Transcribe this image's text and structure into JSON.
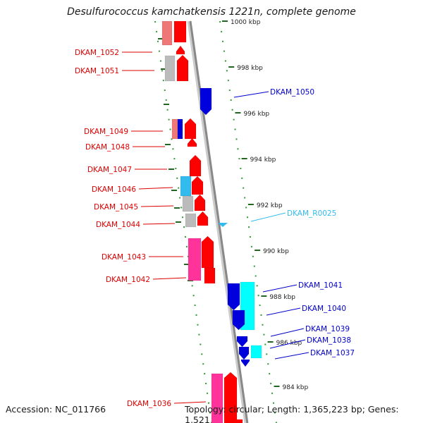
{
  "title": "Desulfurococcus kamchatkensis 1221n, complete genome",
  "footer": {
    "accession": "Accession: NC_011766",
    "topology": "Topology: circular; Length: 1,365,223 bp; Genes: 1,521"
  },
  "colors": {
    "forward_gene": "#ff0000",
    "reverse_gene": "#0000dd",
    "rna_gene": "#00ffff",
    "label_left": "#dd0000",
    "label_right": "#0000cc",
    "label_rna": "#33bbee",
    "backbone": "#888888",
    "tick": "#339933",
    "pink": "#ff3399",
    "grey": "#bbbbbb",
    "skyblue": "#33bbee"
  },
  "scale_labels": [
    "1000 kbp",
    "998 kbp",
    "996 kbp",
    "994 kbp",
    "992 kbp",
    "990 kbp",
    "988 kbp",
    "986 kbp",
    "984 kbp"
  ],
  "genes_left": [
    "DKAM_1052",
    "DKAM_1051",
    "DKAM_1049",
    "DKAM_1048",
    "DKAM_1047",
    "DKAM_1046",
    "DKAM_1045",
    "DKAM_1044",
    "DKAM_1043",
    "DKAM_1042",
    "DKAM_1036"
  ],
  "genes_right": [
    "DKAM_1050",
    "DKAM_R0025",
    "DKAM_1041",
    "DKAM_1040",
    "DKAM_1039",
    "DKAM_1038",
    "DKAM_1037"
  ]
}
